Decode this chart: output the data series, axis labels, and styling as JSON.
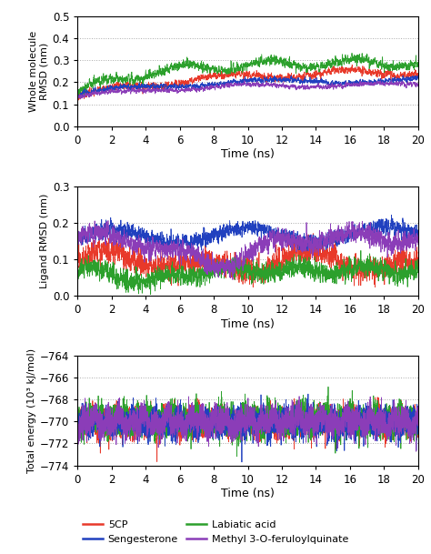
{
  "subplots": [
    {
      "ylabel": "Whole molecule\nRMSD (nm)",
      "xlabel": "Time (ns)",
      "ylim": [
        0.0,
        0.5
      ],
      "yticks": [
        0.0,
        0.1,
        0.2,
        0.3,
        0.4,
        0.5
      ],
      "xlim": [
        0,
        20
      ],
      "xticks": [
        0,
        2,
        4,
        6,
        8,
        10,
        12,
        14,
        16,
        18,
        20
      ]
    },
    {
      "ylabel": "Ligand RMSD (nm)",
      "xlabel": "Time (ns)",
      "ylim": [
        0.0,
        0.3
      ],
      "yticks": [
        0.0,
        0.1,
        0.2,
        0.3
      ],
      "xlim": [
        0,
        20
      ],
      "xticks": [
        0,
        2,
        4,
        6,
        8,
        10,
        12,
        14,
        16,
        18,
        20
      ]
    },
    {
      "ylabel": "Total energy (10³ kJ/mol)",
      "xlabel": "Time (ns)",
      "ylim": [
        -774,
        -764
      ],
      "yticks": [
        -774,
        -772,
        -770,
        -768,
        -766,
        -764
      ],
      "xlim": [
        0,
        20
      ],
      "xticks": [
        0,
        2,
        4,
        6,
        8,
        10,
        12,
        14,
        16,
        18,
        20
      ]
    }
  ],
  "colors": {
    "5CP": "#e8392a",
    "Labiatic acid": "#2ca02c",
    "Sengesterone": "#2040bf",
    "Methyl 3-O-feruloylquinate": "#8b3db8"
  },
  "legend_labels": [
    "5CP",
    "Labiatic acid",
    "Sengesterone",
    "Methyl 3-O-feruloylquinate"
  ],
  "line_width": 0.55,
  "grid_linestyle": "dotted",
  "grid_color": "#aaaaaa",
  "background_color": "#ffffff",
  "seed": 123,
  "n_points": 4000
}
